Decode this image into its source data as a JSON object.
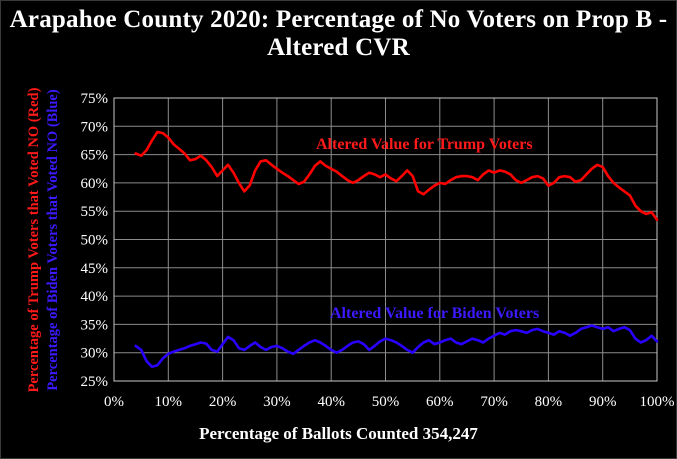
{
  "chart_data": {
    "type": "line",
    "title": "Arapahoe County 2020: Percentage of No Voters on Prop B -Altered CVR",
    "xlabel": "Percentage of Ballots Counted 354,247",
    "ylabel_red": "Percentage of Trump Voters that Voted NO (Red)",
    "ylabel_blue": "Percentage of Biden Voters that Voted NO (Blue)",
    "xlim": [
      0,
      1
    ],
    "ylim": [
      0.25,
      0.75
    ],
    "x_ticks": [
      "0%",
      "10%",
      "20%",
      "30%",
      "40%",
      "50%",
      "60%",
      "70%",
      "80%",
      "90%",
      "100%"
    ],
    "y_ticks": [
      "25%",
      "30%",
      "35%",
      "40%",
      "45%",
      "50%",
      "55%",
      "60%",
      "65%",
      "70%",
      "75%"
    ],
    "grid": true,
    "annotations": [
      {
        "text": "Altered Value for Trump Voters",
        "color": "#ff1a1a"
      },
      {
        "text": "Altered Value for Biden Voters",
        "color": "#3b1aff"
      }
    ],
    "series": [
      {
        "color": "#ff0000",
        "x": [
          0.04,
          0.05,
          0.06,
          0.07,
          0.08,
          0.09,
          0.1,
          0.11,
          0.12,
          0.13,
          0.14,
          0.15,
          0.16,
          0.17,
          0.18,
          0.19,
          0.2,
          0.21,
          0.22,
          0.23,
          0.24,
          0.25,
          0.26,
          0.27,
          0.28,
          0.29,
          0.3,
          0.31,
          0.32,
          0.33,
          0.34,
          0.35,
          0.36,
          0.37,
          0.38,
          0.39,
          0.4,
          0.41,
          0.42,
          0.43,
          0.44,
          0.45,
          0.46,
          0.47,
          0.48,
          0.49,
          0.5,
          0.51,
          0.52,
          0.53,
          0.54,
          0.55,
          0.56,
          0.57,
          0.58,
          0.59,
          0.6,
          0.61,
          0.62,
          0.63,
          0.64,
          0.65,
          0.66,
          0.67,
          0.68,
          0.69,
          0.7,
          0.71,
          0.72,
          0.73,
          0.74,
          0.75,
          0.76,
          0.77,
          0.78,
          0.79,
          0.8,
          0.81,
          0.82,
          0.83,
          0.84,
          0.85,
          0.86,
          0.87,
          0.88,
          0.89,
          0.9,
          0.91,
          0.92,
          0.93,
          0.94,
          0.95,
          0.96,
          0.97,
          0.98,
          0.99,
          1.0
        ],
        "y": [
          0.652,
          0.648,
          0.658,
          0.675,
          0.69,
          0.688,
          0.68,
          0.668,
          0.66,
          0.652,
          0.64,
          0.642,
          0.648,
          0.64,
          0.628,
          0.612,
          0.622,
          0.632,
          0.618,
          0.6,
          0.585,
          0.596,
          0.622,
          0.638,
          0.64,
          0.632,
          0.625,
          0.618,
          0.612,
          0.605,
          0.598,
          0.602,
          0.615,
          0.63,
          0.638,
          0.63,
          0.625,
          0.62,
          0.612,
          0.605,
          0.6,
          0.605,
          0.612,
          0.618,
          0.615,
          0.61,
          0.615,
          0.608,
          0.603,
          0.612,
          0.622,
          0.612,
          0.585,
          0.58,
          0.588,
          0.595,
          0.6,
          0.598,
          0.605,
          0.61,
          0.612,
          0.612,
          0.61,
          0.605,
          0.615,
          0.622,
          0.618,
          0.622,
          0.62,
          0.615,
          0.605,
          0.6,
          0.605,
          0.61,
          0.612,
          0.608,
          0.595,
          0.6,
          0.61,
          0.612,
          0.61,
          0.602,
          0.605,
          0.615,
          0.625,
          0.632,
          0.628,
          0.612,
          0.6,
          0.592,
          0.585,
          0.578,
          0.56,
          0.55,
          0.545,
          0.548,
          0.535
        ]
      },
      {
        "color": "#2a00ff",
        "x": [
          0.04,
          0.05,
          0.06,
          0.07,
          0.08,
          0.09,
          0.1,
          0.11,
          0.12,
          0.13,
          0.14,
          0.15,
          0.16,
          0.17,
          0.18,
          0.19,
          0.2,
          0.21,
          0.22,
          0.23,
          0.24,
          0.25,
          0.26,
          0.27,
          0.28,
          0.29,
          0.3,
          0.31,
          0.32,
          0.33,
          0.34,
          0.35,
          0.36,
          0.37,
          0.38,
          0.39,
          0.4,
          0.41,
          0.42,
          0.43,
          0.44,
          0.45,
          0.46,
          0.47,
          0.48,
          0.49,
          0.5,
          0.51,
          0.52,
          0.53,
          0.54,
          0.55,
          0.56,
          0.57,
          0.58,
          0.59,
          0.6,
          0.61,
          0.62,
          0.63,
          0.64,
          0.65,
          0.66,
          0.67,
          0.68,
          0.69,
          0.7,
          0.71,
          0.72,
          0.73,
          0.74,
          0.75,
          0.76,
          0.77,
          0.78,
          0.79,
          0.8,
          0.81,
          0.82,
          0.83,
          0.84,
          0.85,
          0.86,
          0.87,
          0.88,
          0.89,
          0.9,
          0.91,
          0.92,
          0.93,
          0.94,
          0.95,
          0.96,
          0.97,
          0.98,
          0.99,
          1.0
        ],
        "y": [
          0.312,
          0.305,
          0.285,
          0.275,
          0.278,
          0.29,
          0.298,
          0.302,
          0.305,
          0.308,
          0.312,
          0.315,
          0.318,
          0.316,
          0.305,
          0.302,
          0.315,
          0.328,
          0.322,
          0.308,
          0.305,
          0.312,
          0.318,
          0.31,
          0.305,
          0.31,
          0.312,
          0.308,
          0.302,
          0.298,
          0.305,
          0.312,
          0.318,
          0.322,
          0.318,
          0.312,
          0.305,
          0.3,
          0.305,
          0.312,
          0.318,
          0.32,
          0.315,
          0.305,
          0.312,
          0.32,
          0.325,
          0.322,
          0.318,
          0.312,
          0.305,
          0.3,
          0.31,
          0.318,
          0.322,
          0.315,
          0.318,
          0.322,
          0.325,
          0.318,
          0.315,
          0.32,
          0.325,
          0.322,
          0.318,
          0.325,
          0.33,
          0.335,
          0.332,
          0.338,
          0.34,
          0.338,
          0.335,
          0.34,
          0.342,
          0.338,
          0.335,
          0.332,
          0.338,
          0.335,
          0.33,
          0.335,
          0.342,
          0.345,
          0.348,
          0.345,
          0.342,
          0.345,
          0.338,
          0.342,
          0.345,
          0.34,
          0.325,
          0.318,
          0.322,
          0.33,
          0.32
        ]
      }
    ]
  }
}
